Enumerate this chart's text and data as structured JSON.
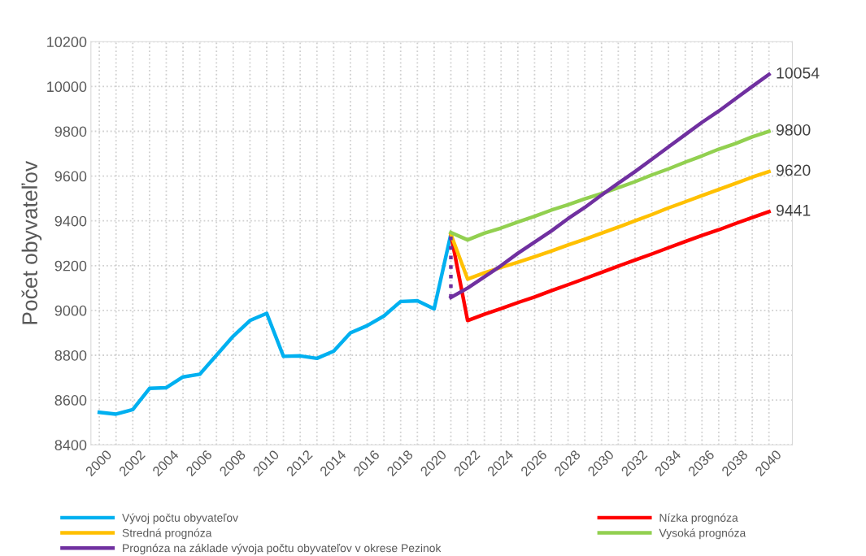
{
  "chart_data": {
    "type": "line",
    "ylabel": "Počet obyvateľov",
    "xlim": [
      1999.5,
      2041.4
    ],
    "ylim": [
      8400,
      10200
    ],
    "yticks": [
      8400,
      8600,
      8800,
      9000,
      9200,
      9400,
      9600,
      9800,
      10000,
      10200
    ],
    "xticks": [
      2000,
      {
        "value": 2001,
        "label": null
      },
      2002,
      {
        "value": 2003,
        "label": null
      },
      2004,
      {
        "value": 2005,
        "label": null
      },
      2006,
      {
        "value": 2007,
        "label": null
      },
      2008,
      {
        "value": 2009,
        "label": null
      },
      2010,
      {
        "value": 2011,
        "label": null
      },
      2012,
      {
        "value": 2013,
        "label": null
      },
      2014,
      {
        "value": 2015,
        "label": null
      },
      2016,
      {
        "value": 2017,
        "label": null
      },
      2018,
      {
        "value": 2019,
        "label": null
      },
      2020,
      {
        "value": 2021,
        "label": null
      },
      2022,
      {
        "value": 2023,
        "label": null
      },
      2024,
      {
        "value": 2025,
        "label": null
      },
      2026,
      {
        "value": 2027,
        "label": null
      },
      2028,
      {
        "value": 2029,
        "label": null
      },
      2030,
      {
        "value": 2031,
        "label": null
      },
      2032,
      {
        "value": 2033,
        "label": null
      },
      2034,
      {
        "value": 2035,
        "label": null
      },
      2036,
      {
        "value": 2037,
        "label": null
      },
      2038,
      {
        "value": 2039,
        "label": null
      },
      2040
    ],
    "grid": true,
    "legend": "bottom",
    "marker": "none",
    "series": [
      {
        "name": "Vývoj počtu obyvateľov",
        "color": "#00b0f0",
        "x": [
          2000,
          2001,
          2002,
          2003,
          2004,
          2005,
          2006,
          2007,
          2008,
          2009,
          2010,
          2011,
          2012,
          2013,
          2014,
          2015,
          2016,
          2017,
          2018,
          2019,
          2020,
          2021
        ],
        "values": [
          8545,
          8537,
          8557,
          8652,
          8655,
          8703,
          8715,
          8800,
          8885,
          8955,
          8987,
          8795,
          8797,
          8786,
          8818,
          8900,
          8932,
          8975,
          9040,
          9043,
          9007,
          9340
        ]
      },
      {
        "name": "Nízka prognóza",
        "color": "#ff0000",
        "x": [
          2021,
          2022,
          2023,
          2024,
          2025,
          2026,
          2027,
          2028,
          2029,
          2030,
          2031,
          2032,
          2033,
          2034,
          2035,
          2036,
          2037,
          2038,
          2039,
          2040
        ],
        "values": [
          9340,
          8955,
          8983,
          9008,
          9035,
          9060,
          9088,
          9115,
          9142,
          9170,
          9198,
          9225,
          9252,
          9280,
          9308,
          9335,
          9360,
          9388,
          9415,
          9441
        ],
        "value_labels": [
          null,
          null,
          null,
          null,
          null,
          null,
          null,
          null,
          null,
          null,
          null,
          null,
          null,
          null,
          null,
          null,
          null,
          null,
          null,
          "9441"
        ]
      },
      {
        "name": "Stredná prognóza",
        "color": "#ffc000",
        "x": [
          2021,
          2022,
          2023,
          2024,
          2025,
          2026,
          2027,
          2028,
          2029,
          2030,
          2031,
          2032,
          2033,
          2034,
          2035,
          2036,
          2037,
          2038,
          2039,
          2040
        ],
        "values": [
          9340,
          9140,
          9168,
          9192,
          9215,
          9240,
          9265,
          9292,
          9318,
          9345,
          9372,
          9400,
          9428,
          9458,
          9485,
          9513,
          9540,
          9567,
          9595,
          9620
        ],
        "value_labels": [
          null,
          null,
          null,
          null,
          null,
          null,
          null,
          null,
          null,
          null,
          null,
          null,
          null,
          null,
          null,
          null,
          null,
          null,
          null,
          "9620"
        ]
      },
      {
        "name": "Vysoká prognóza",
        "color": "#92d050",
        "x": [
          2021,
          2022,
          2023,
          2024,
          2025,
          2026,
          2027,
          2028,
          2029,
          2030,
          2031,
          2032,
          2033,
          2034,
          2035,
          2036,
          2037,
          2038,
          2039,
          2040
        ],
        "values": [
          9348,
          9315,
          9345,
          9368,
          9395,
          9420,
          9448,
          9472,
          9498,
          9522,
          9548,
          9575,
          9605,
          9632,
          9662,
          9690,
          9720,
          9745,
          9775,
          9800
        ],
        "value_labels": [
          null,
          null,
          null,
          null,
          null,
          null,
          null,
          null,
          null,
          null,
          null,
          null,
          null,
          null,
          null,
          null,
          null,
          null,
          null,
          "9800"
        ]
      },
      {
        "name": "Prognóza na základe vývoja počtu obyvateľov v okrese Pezinok",
        "color": "#7030a0",
        "x": [
          2021,
          2022,
          2023,
          2024,
          2025,
          2026,
          2027,
          2028,
          2029,
          2030,
          2031,
          2032,
          2033,
          2034,
          2035,
          2036,
          2037,
          2038,
          2039,
          2040
        ],
        "values": [
          9058,
          9100,
          9150,
          9200,
          9255,
          9305,
          9355,
          9410,
          9460,
          9515,
          9568,
          9620,
          9675,
          9730,
          9785,
          9840,
          9890,
          9945,
          10000,
          10054
        ],
        "value_labels": [
          null,
          null,
          null,
          null,
          null,
          null,
          null,
          null,
          null,
          null,
          null,
          null,
          null,
          null,
          null,
          null,
          null,
          null,
          null,
          "10054"
        ]
      },
      {
        "color": "#7030a0",
        "line_style": "dotted",
        "x": [
          2021,
          2021
        ],
        "values": [
          9330,
          9058
        ]
      }
    ]
  }
}
